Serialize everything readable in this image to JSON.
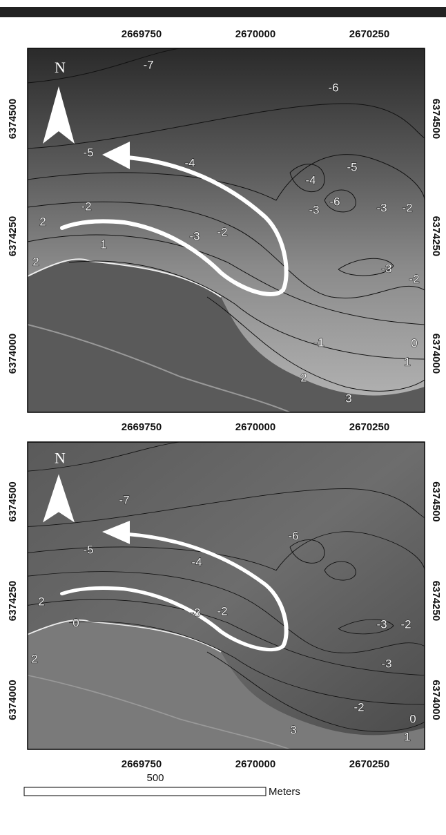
{
  "panels": [
    {
      "north": "N",
      "x_labels_top": [
        "2669750",
        "2670000",
        "2670250"
      ],
      "x_labels_bottom": [
        "2669750",
        "2670000",
        "2670250"
      ],
      "y_labels_left": [
        "6374500",
        "6374250",
        "6374000"
      ],
      "y_labels_right": [
        "6374500",
        "6374250",
        "6374000"
      ],
      "contour_labels": [
        "-7",
        "-6",
        "-5",
        "-4",
        "-2",
        "2",
        "-3",
        "-2",
        "1",
        "-4",
        "-5",
        "-3",
        "-6",
        "-3",
        "-2",
        "-3",
        "-2",
        "2",
        "-1",
        "2",
        "3",
        "1",
        "0"
      ]
    },
    {
      "north": "N",
      "x_labels_bottom": [
        "2669750",
        "2670000",
        "2670250"
      ],
      "y_labels_left": [
        "6374500",
        "6374250",
        "6374000"
      ],
      "y_labels_right": [
        "6374500",
        "6374250",
        "6374000"
      ],
      "contour_labels": [
        "-7",
        "-6",
        "-5",
        "-4",
        "2",
        "0",
        "-3",
        "-2",
        "2",
        "-3",
        "-2",
        "-3",
        "-2",
        "3",
        "1",
        "0"
      ]
    }
  ],
  "scale_bar": {
    "value": "500",
    "unit": "Meters"
  }
}
